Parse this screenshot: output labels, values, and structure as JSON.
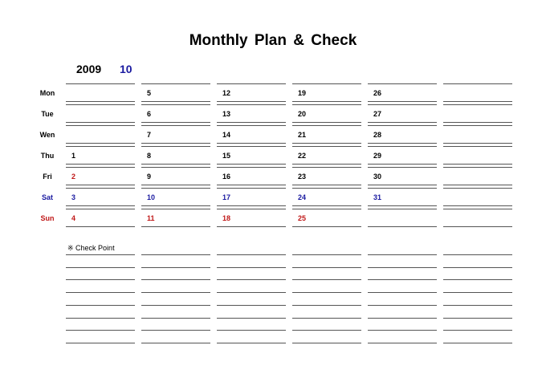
{
  "title": "Monthly Plan & Check",
  "year": "2009",
  "month": "10",
  "colors": {
    "weekday": "#000000",
    "saturday": "#1a1aa0",
    "sunday": "#c01818"
  },
  "days": [
    "Mon",
    "Tue",
    "Wen",
    "Thu",
    "Fri",
    "Sat",
    "Sun"
  ],
  "weeks": [
    [
      "",
      "",
      "",
      "1",
      "2",
      "3",
      "4"
    ],
    [
      "5",
      "6",
      "7",
      "8",
      "9",
      "10",
      "11"
    ],
    [
      "12",
      "13",
      "14",
      "15",
      "16",
      "17",
      "18"
    ],
    [
      "19",
      "20",
      "21",
      "22",
      "23",
      "24",
      "25"
    ],
    [
      "26",
      "27",
      "28",
      "29",
      "30",
      "31",
      ""
    ],
    [
      "",
      "",
      "",
      "",
      "",
      "",
      ""
    ]
  ],
  "check_point_label": "※ Check Point"
}
